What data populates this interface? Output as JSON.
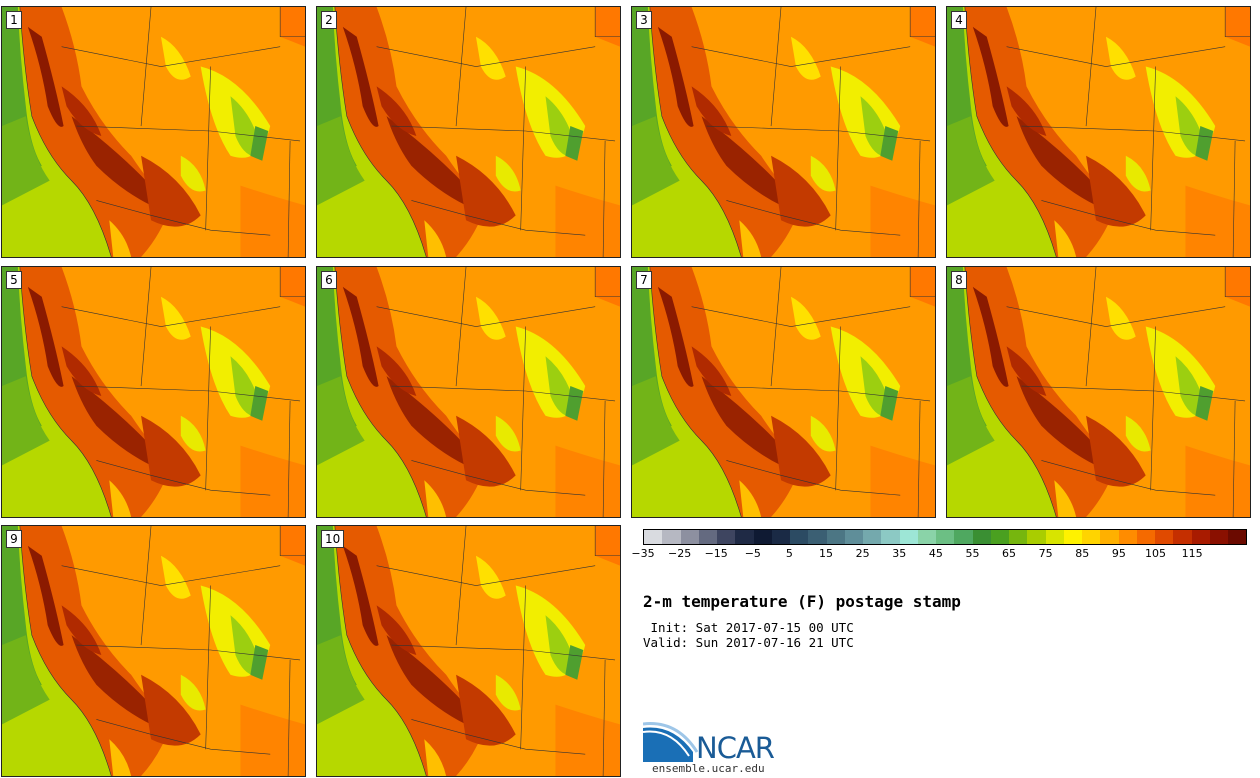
{
  "members": [
    "1",
    "2",
    "3",
    "4",
    "5",
    "6",
    "7",
    "8",
    "9",
    "10"
  ],
  "title": "2-m temperature (F) postage stamp",
  "init": " Init: Sat 2017-07-15 00 UTC",
  "valid": "Valid: Sun 2017-07-16 21 UTC",
  "colorbar": {
    "colors": [
      "#d9dbe0",
      "#b6b8c2",
      "#8d90a0",
      "#646a80",
      "#3e4560",
      "#1f2a45",
      "#0f1a33",
      "#1a2a45",
      "#2c4b63",
      "#3b5f73",
      "#4c7684",
      "#5f8e99",
      "#74a9ad",
      "#8cc9c4",
      "#9de6d6",
      "#8ad3a8",
      "#6cbf84",
      "#4fa860",
      "#3a8f33",
      "#4aa020",
      "#76b60e",
      "#a9cd00",
      "#d8e400",
      "#fff200",
      "#ffd400",
      "#ffb000",
      "#ff8c00",
      "#f56a00",
      "#e04a00",
      "#c52f00",
      "#a81b00",
      "#8a1000",
      "#6b0a00"
    ],
    "ticks": [
      "−35",
      "−25",
      "−15",
      "−5",
      "5",
      "15",
      "25",
      "35",
      "45",
      "55",
      "65",
      "75",
      "85",
      "95",
      "105",
      "115"
    ]
  },
  "logo": {
    "name": "NCAR",
    "url": "ensemble.ucar.edu"
  }
}
